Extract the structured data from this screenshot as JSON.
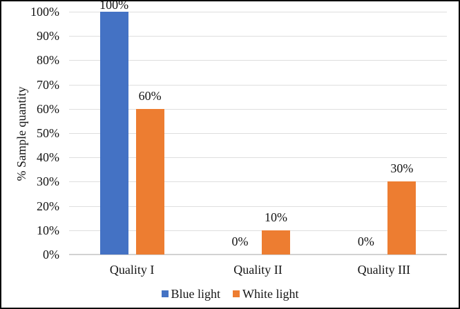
{
  "figure": {
    "background": "#ffffff",
    "border_color": "#0a0a0a"
  },
  "chart_data": {
    "type": "bar",
    "ylabel": "% Sample quantity",
    "categories": [
      "Quality I",
      "Quality II",
      "Quality III"
    ],
    "series": [
      {
        "name": "Blue light",
        "color": "#4472C4",
        "values": [
          100,
          0,
          0
        ],
        "data_labels": [
          "100%",
          "0%",
          "0%"
        ]
      },
      {
        "name": "White light",
        "color": "#ED7D31",
        "values": [
          60,
          10,
          30
        ],
        "data_labels": [
          "60%",
          "10%",
          "30%"
        ]
      }
    ],
    "ylim": [
      0,
      100
    ],
    "yticks": [
      0,
      10,
      20,
      30,
      40,
      50,
      60,
      70,
      80,
      90,
      100
    ],
    "ytick_labels": [
      "0%",
      "10%",
      "20%",
      "30%",
      "40%",
      "50%",
      "60%",
      "70%",
      "80%",
      "90%",
      "100%"
    ],
    "grid": "horizontal",
    "legend_position": "bottom-center",
    "gridline_color": "#dedede",
    "axis_line_color": "#d2d2d2"
  }
}
